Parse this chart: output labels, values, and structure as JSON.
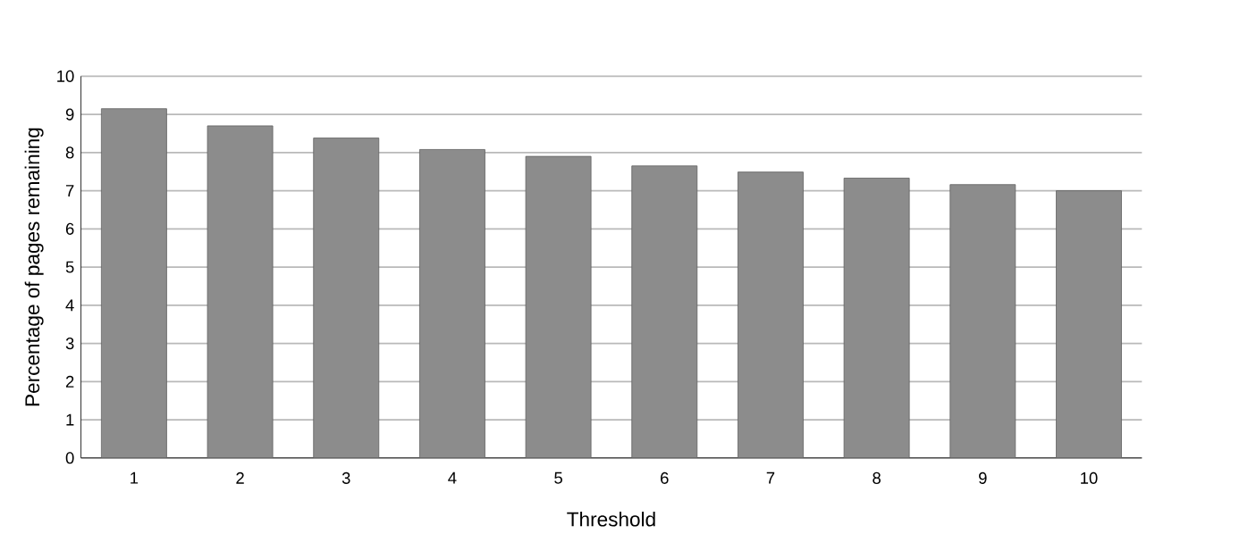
{
  "chart_data": {
    "type": "bar",
    "xlabel": "Threshold",
    "ylabel": "Percentage of pages remaining",
    "categories": [
      "1",
      "2",
      "3",
      "4",
      "5",
      "6",
      "7",
      "8",
      "9",
      "10"
    ],
    "values": [
      9.15,
      8.7,
      8.38,
      8.08,
      7.9,
      7.65,
      7.49,
      7.33,
      7.16,
      7.0
    ],
    "color": "#8c8c8c",
    "ylim": [
      0,
      10
    ],
    "yticks": [
      0,
      1,
      2,
      3,
      4,
      5,
      6,
      7,
      8,
      9,
      10
    ],
    "grid": "y"
  }
}
